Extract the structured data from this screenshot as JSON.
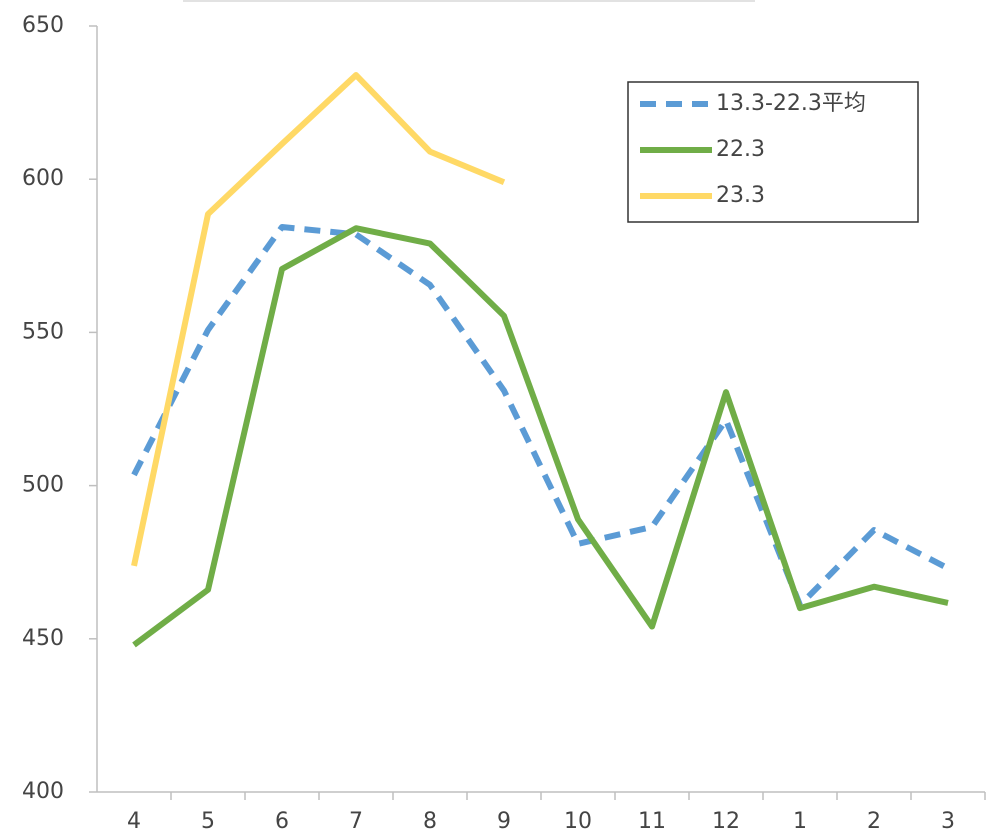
{
  "chart_data": {
    "type": "line",
    "categories": [
      "4",
      "5",
      "6",
      "7",
      "8",
      "9",
      "10",
      "11",
      "12",
      "1",
      "2",
      "3"
    ],
    "series": [
      {
        "name": "13.3-22.3平均",
        "color": "#5b9bd5",
        "dashed": true,
        "values": [
          503.5,
          550.8,
          584.4,
          582,
          565.5,
          531,
          481,
          486.5,
          521.4,
          461,
          485.5,
          473
        ]
      },
      {
        "name": "22.3",
        "color": "#70ad47",
        "dashed": false,
        "values": [
          448,
          466,
          570.7,
          584,
          579,
          555.4,
          489,
          454,
          530.5,
          460,
          467,
          461.7
        ]
      },
      {
        "name": "23.3",
        "color": "#ffd966",
        "dashed": false,
        "values": [
          473.8,
          588.6,
          611.5,
          634,
          609,
          599,
          null,
          null,
          null,
          null,
          null,
          null
        ]
      }
    ],
    "ylim": [
      400,
      650
    ],
    "yticks": [
      400,
      450,
      500,
      550,
      600,
      650
    ],
    "grid": false,
    "legend": "upper right"
  }
}
